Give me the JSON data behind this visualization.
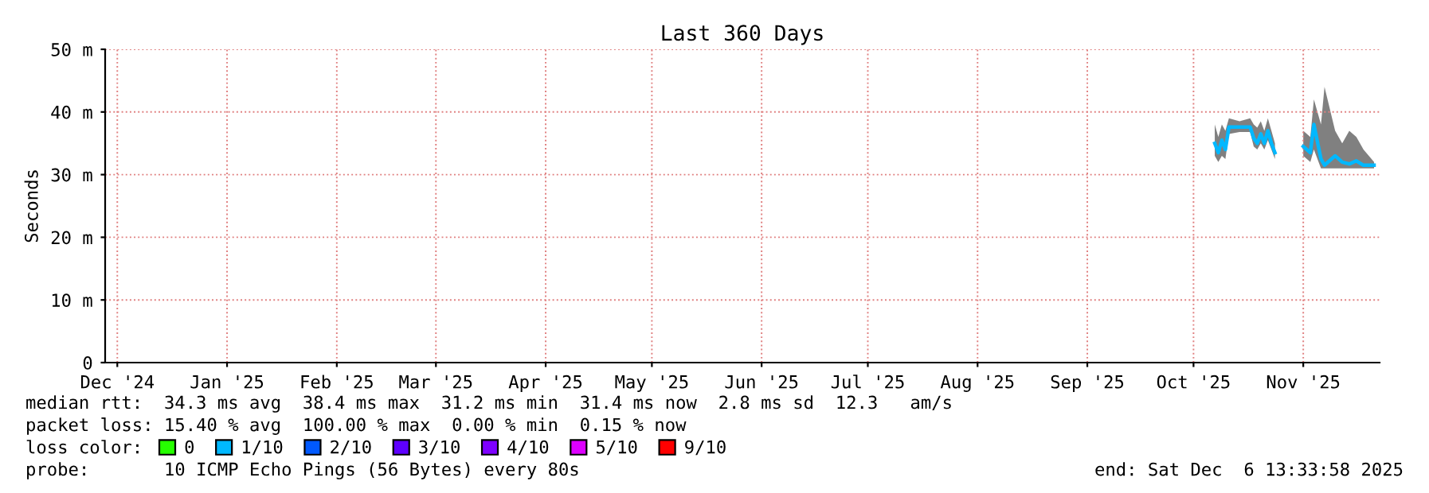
{
  "chart_data": {
    "type": "line",
    "title": "Last 360 Days",
    "ylabel": "Seconds",
    "legend_title": "loss color:",
    "xlim": [
      "2024-12-11T13:33",
      "2025-12-06T13:33"
    ],
    "xticks": [
      {
        "value": "2024-12-15",
        "label": "Dec '24"
      },
      {
        "value": "2025-01-15",
        "label": "Jan '25"
      },
      {
        "value": "2025-02-15",
        "label": "Feb '25"
      },
      {
        "value": "2025-03-15",
        "label": "Mar '25"
      },
      {
        "value": "2025-04-15",
        "label": "Apr '25"
      },
      {
        "value": "2025-05-15",
        "label": "May '25"
      },
      {
        "value": "2025-06-15",
        "label": "Jun '25"
      },
      {
        "value": "2025-07-15",
        "label": "Jul '25"
      },
      {
        "value": "2025-08-15",
        "label": "Aug '25"
      },
      {
        "value": "2025-09-15",
        "label": "Sep '25"
      },
      {
        "value": "2025-10-15",
        "label": "Oct '25"
      },
      {
        "value": "2025-11-15",
        "label": "Nov '25"
      }
    ],
    "ylim": [
      0,
      50
    ],
    "yticks": [
      0,
      {
        "value": 10,
        "label": "10 m"
      },
      {
        "value": 20,
        "label": "20 m"
      },
      {
        "value": 30,
        "label": "30 m"
      },
      {
        "value": 40,
        "label": "40 m"
      },
      {
        "value": 50,
        "label": "50 m"
      }
    ],
    "grid": true,
    "legend": "bottom",
    "marker": "none",
    "line_style": "solid",
    "x": [
      "2025-10-21",
      "2025-10-22",
      "2025-10-23",
      "2025-10-24",
      "2025-10-25",
      "2025-10-28",
      "2025-10-31",
      "2025-11-01",
      "2025-11-02",
      "2025-11-03",
      "2025-11-04",
      "2025-11-05",
      "2025-11-06",
      "2025-11-07",
      "2025-11-11",
      "2025-11-15",
      "2025-11-17",
      "2025-11-18",
      "2025-11-20",
      "2025-11-21",
      "2025-11-24",
      "2025-11-26",
      "2025-11-28",
      "2025-11-30",
      "2025-12-02",
      "2025-12-05"
    ],
    "series": [
      {
        "name": "0",
        "color": "#26ff00",
        "values": [
          null,
          null,
          null,
          null,
          null,
          null,
          null,
          null,
          null,
          null,
          null,
          null,
          null,
          null,
          null,
          null,
          null,
          null,
          null,
          null,
          null,
          null,
          null,
          null,
          null,
          null
        ]
      },
      {
        "name": "1/10",
        "color": "#00b8ff",
        "values": [
          35,
          33.5,
          35.5,
          34,
          37.6,
          37.6,
          37.6,
          35.8,
          35,
          36.5,
          35,
          37,
          35,
          33.5,
          null,
          34.5,
          33.5,
          38,
          32.5,
          31.5,
          33,
          32,
          31.7,
          32.2,
          31.5,
          31.5
        ],
        "lower": [
          33,
          32,
          33,
          32.5,
          36.5,
          36.8,
          36.8,
          34.5,
          34,
          35,
          34,
          35.5,
          34,
          32.5,
          null,
          33,
          32,
          34,
          31,
          31,
          31,
          31,
          31,
          31,
          31,
          31
        ],
        "upper": [
          38,
          36,
          38,
          37,
          39,
          38.5,
          39,
          38,
          37.5,
          38.5,
          37,
          39,
          37,
          35,
          null,
          37,
          36,
          42,
          38,
          44,
          37,
          35,
          37,
          36,
          34,
          32
        ]
      },
      {
        "name": "2/10",
        "color": "#0059ff",
        "values": [
          null,
          null,
          null,
          null,
          null,
          null,
          null,
          null,
          null,
          null,
          null,
          null,
          null,
          null,
          null,
          null,
          null,
          null,
          null,
          null,
          null,
          null,
          null,
          null,
          null,
          null
        ]
      },
      {
        "name": "3/10",
        "color": "#5e00ff",
        "values": [
          null,
          null,
          null,
          null,
          null,
          null,
          null,
          null,
          null,
          null,
          null,
          null,
          null,
          null,
          null,
          null,
          null,
          null,
          null,
          null,
          null,
          null,
          null,
          null,
          null,
          null
        ]
      },
      {
        "name": "4/10",
        "color": "#7e00ff",
        "values": [
          null,
          null,
          null,
          null,
          null,
          null,
          null,
          null,
          null,
          null,
          null,
          null,
          null,
          null,
          null,
          null,
          null,
          null,
          null,
          null,
          null,
          null,
          null,
          null,
          null,
          null
        ]
      },
      {
        "name": "5/10",
        "color": "#dd00ff",
        "values": [
          null,
          null,
          null,
          null,
          null,
          null,
          null,
          null,
          null,
          null,
          null,
          null,
          null,
          null,
          null,
          null,
          null,
          null,
          null,
          null,
          null,
          null,
          null,
          null,
          null,
          null
        ]
      },
      {
        "name": "9/10",
        "color": "#ff0000",
        "values": [
          null,
          null,
          null,
          null,
          null,
          null,
          null,
          null,
          null,
          null,
          null,
          null,
          null,
          null,
          null,
          null,
          null,
          null,
          null,
          null,
          null,
          null,
          null,
          null,
          null,
          null
        ]
      }
    ],
    "annotations": [
      "median rtt:  34.3 ms avg  38.4 ms max  31.2 ms min  31.4 ms now  2.8 ms sd  12.3   am/s",
      "packet loss: 15.40 % avg  100.00 % max  0.00 % min  0.15 % now",
      "probe:       10 ICMP Echo Pings (56 Bytes) every 80s",
      "end: Sat Dec  6 13:33:58 2025"
    ]
  }
}
